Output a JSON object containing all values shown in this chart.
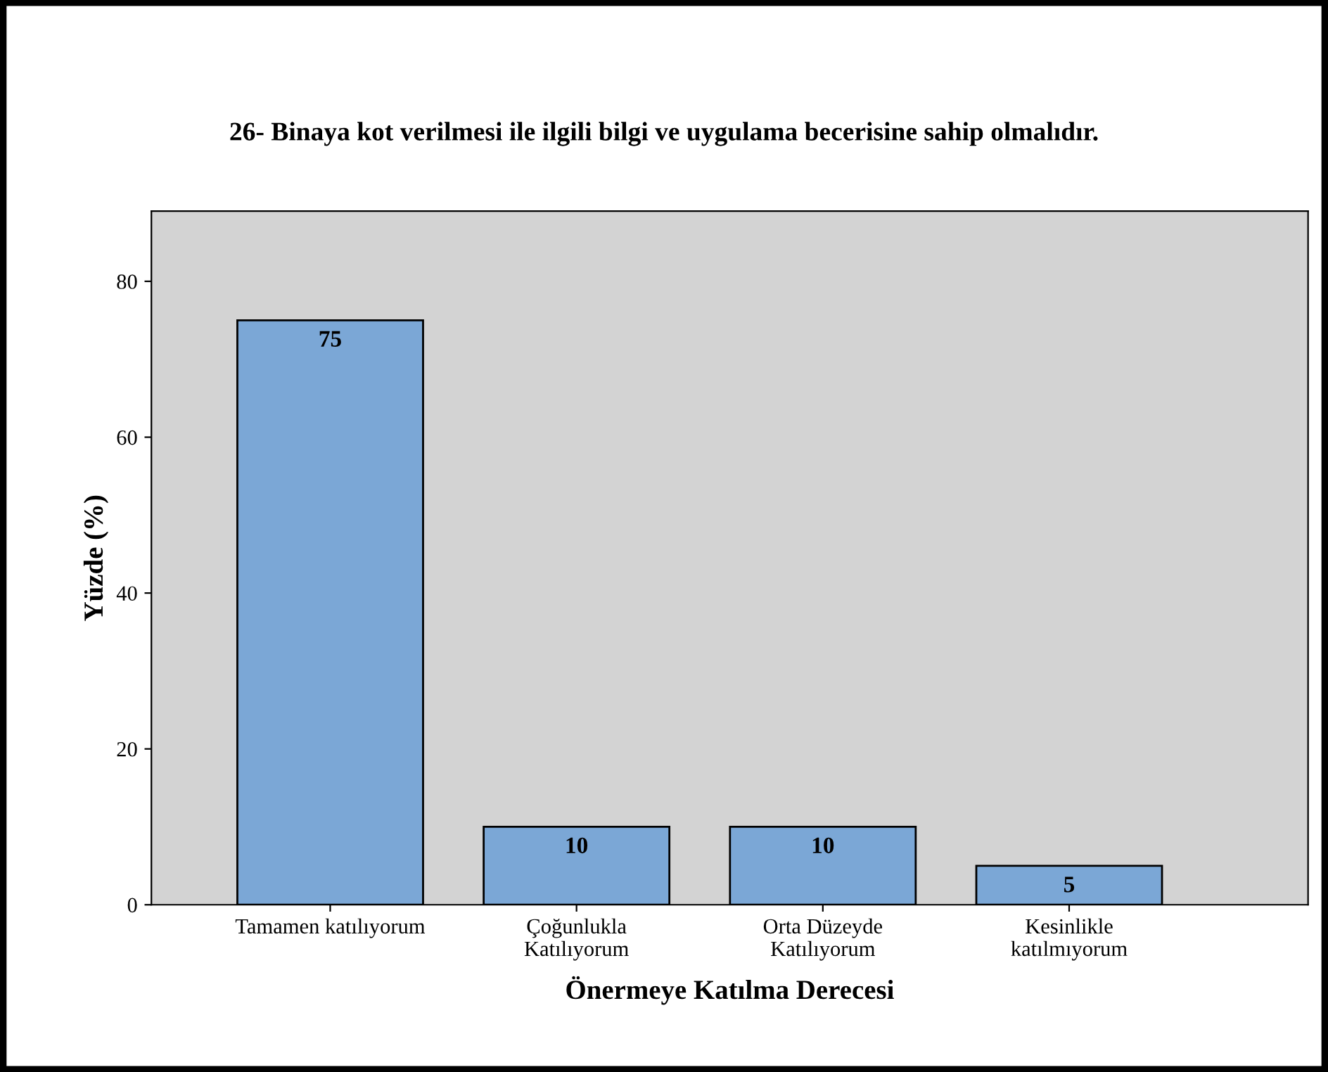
{
  "chart_data": {
    "type": "bar",
    "title": "26- Binaya kot verilmesi ile ilgili bilgi ve uygulama becerisine sahip olmalıdır.",
    "xlabel": "Önermeye Katılma Derecesi",
    "ylabel": "Yüzde (%)",
    "categories": [
      "Tamamen katılıyorum",
      "Çoğunlukla\nKatılıyorum",
      "Orta Düzeyde\nKatılıyorum",
      "Kesinlikle\nkatılmıyorum"
    ],
    "values": [
      75,
      10,
      10,
      5
    ],
    "color": "#7ba7d6",
    "ylim": [
      0,
      89
    ],
    "yticks": [
      0,
      20,
      40,
      60,
      80
    ],
    "grid": false,
    "data_labels": true
  }
}
